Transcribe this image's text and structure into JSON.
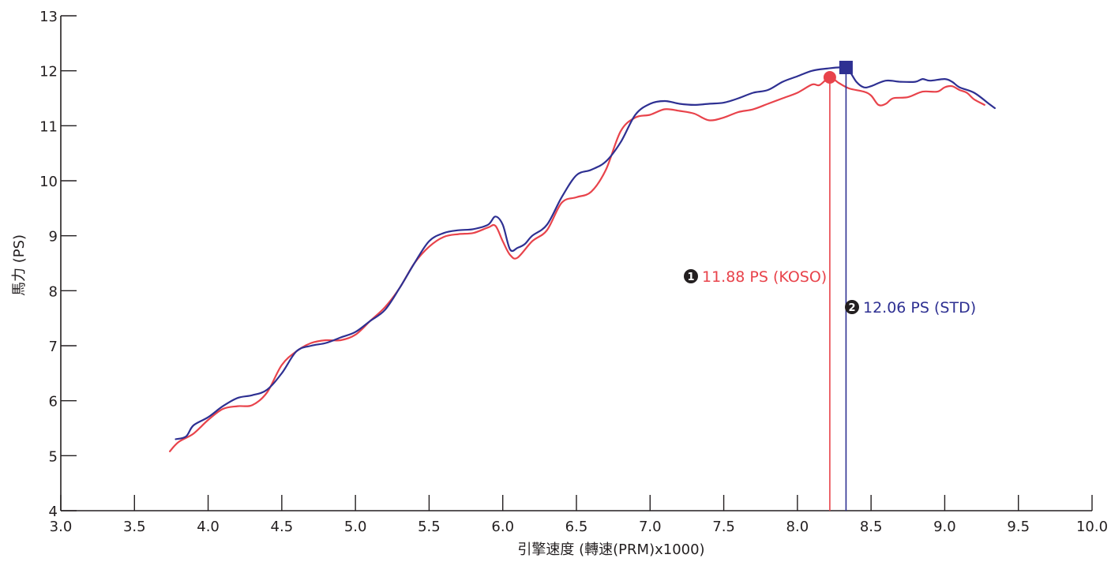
{
  "chart_data": {
    "type": "line",
    "title": "",
    "xlabel": "引擎速度 (轉速(PRM)x1000)",
    "ylabel": "馬力 (PS)",
    "xlim": [
      3.0,
      10.0
    ],
    "ylim": [
      4,
      13
    ],
    "x_ticks": [
      "3.0",
      "3.5",
      "4.0",
      "4.5",
      "5.0",
      "5.5",
      "6.0",
      "6.5",
      "7.0",
      "7.5",
      "8.0",
      "8.5",
      "9.0",
      "9.5",
      "10.0"
    ],
    "y_ticks": [
      "4",
      "5",
      "6",
      "7",
      "8",
      "9",
      "10",
      "11",
      "12",
      "13"
    ],
    "grid": false,
    "legend": "none",
    "series": [
      {
        "key": "koso",
        "color": "#e8434b",
        "points": [
          [
            3.74,
            5.08
          ],
          [
            3.8,
            5.25
          ],
          [
            3.9,
            5.4
          ],
          [
            4.0,
            5.65
          ],
          [
            4.1,
            5.85
          ],
          [
            4.2,
            5.9
          ],
          [
            4.3,
            5.92
          ],
          [
            4.4,
            6.15
          ],
          [
            4.5,
            6.65
          ],
          [
            4.6,
            6.9
          ],
          [
            4.7,
            7.05
          ],
          [
            4.8,
            7.1
          ],
          [
            4.9,
            7.1
          ],
          [
            5.0,
            7.2
          ],
          [
            5.1,
            7.45
          ],
          [
            5.2,
            7.7
          ],
          [
            5.3,
            8.05
          ],
          [
            5.4,
            8.5
          ],
          [
            5.5,
            8.8
          ],
          [
            5.6,
            8.98
          ],
          [
            5.7,
            9.03
          ],
          [
            5.8,
            9.05
          ],
          [
            5.9,
            9.15
          ],
          [
            5.95,
            9.18
          ],
          [
            6.0,
            8.9
          ],
          [
            6.05,
            8.65
          ],
          [
            6.1,
            8.6
          ],
          [
            6.2,
            8.9
          ],
          [
            6.3,
            9.1
          ],
          [
            6.4,
            9.6
          ],
          [
            6.5,
            9.7
          ],
          [
            6.6,
            9.8
          ],
          [
            6.7,
            10.2
          ],
          [
            6.8,
            10.9
          ],
          [
            6.9,
            11.15
          ],
          [
            7.0,
            11.2
          ],
          [
            7.1,
            11.3
          ],
          [
            7.2,
            11.27
          ],
          [
            7.3,
            11.22
          ],
          [
            7.4,
            11.1
          ],
          [
            7.5,
            11.15
          ],
          [
            7.6,
            11.25
          ],
          [
            7.7,
            11.3
          ],
          [
            7.8,
            11.4
          ],
          [
            7.9,
            11.5
          ],
          [
            8.0,
            11.6
          ],
          [
            8.1,
            11.75
          ],
          [
            8.15,
            11.74
          ],
          [
            8.22,
            11.88
          ],
          [
            8.28,
            11.78
          ],
          [
            8.35,
            11.68
          ],
          [
            8.45,
            11.62
          ],
          [
            8.5,
            11.55
          ],
          [
            8.55,
            11.38
          ],
          [
            8.6,
            11.4
          ],
          [
            8.65,
            11.5
          ],
          [
            8.75,
            11.52
          ],
          [
            8.85,
            11.62
          ],
          [
            8.95,
            11.62
          ],
          [
            9.0,
            11.7
          ],
          [
            9.05,
            11.72
          ],
          [
            9.1,
            11.65
          ],
          [
            9.15,
            11.6
          ],
          [
            9.2,
            11.48
          ],
          [
            9.27,
            11.38
          ]
        ]
      },
      {
        "key": "std",
        "color": "#2e3092",
        "points": [
          [
            3.78,
            5.3
          ],
          [
            3.85,
            5.35
          ],
          [
            3.9,
            5.55
          ],
          [
            4.0,
            5.7
          ],
          [
            4.1,
            5.9
          ],
          [
            4.2,
            6.05
          ],
          [
            4.3,
            6.1
          ],
          [
            4.4,
            6.2
          ],
          [
            4.5,
            6.5
          ],
          [
            4.6,
            6.9
          ],
          [
            4.7,
            7.0
          ],
          [
            4.8,
            7.05
          ],
          [
            4.9,
            7.15
          ],
          [
            5.0,
            7.25
          ],
          [
            5.1,
            7.45
          ],
          [
            5.2,
            7.65
          ],
          [
            5.3,
            8.05
          ],
          [
            5.4,
            8.5
          ],
          [
            5.5,
            8.9
          ],
          [
            5.6,
            9.05
          ],
          [
            5.7,
            9.1
          ],
          [
            5.8,
            9.12
          ],
          [
            5.9,
            9.2
          ],
          [
            5.95,
            9.35
          ],
          [
            6.0,
            9.2
          ],
          [
            6.05,
            8.75
          ],
          [
            6.1,
            8.78
          ],
          [
            6.15,
            8.85
          ],
          [
            6.2,
            9.0
          ],
          [
            6.3,
            9.2
          ],
          [
            6.4,
            9.7
          ],
          [
            6.5,
            10.1
          ],
          [
            6.6,
            10.2
          ],
          [
            6.7,
            10.35
          ],
          [
            6.8,
            10.7
          ],
          [
            6.9,
            11.2
          ],
          [
            7.0,
            11.4
          ],
          [
            7.1,
            11.45
          ],
          [
            7.2,
            11.4
          ],
          [
            7.3,
            11.38
          ],
          [
            7.4,
            11.4
          ],
          [
            7.5,
            11.42
          ],
          [
            7.6,
            11.5
          ],
          [
            7.7,
            11.6
          ],
          [
            7.8,
            11.65
          ],
          [
            7.9,
            11.8
          ],
          [
            8.0,
            11.9
          ],
          [
            8.1,
            12.0
          ],
          [
            8.2,
            12.04
          ],
          [
            8.3,
            12.06
          ],
          [
            8.35,
            12.0
          ],
          [
            8.4,
            11.8
          ],
          [
            8.45,
            11.7
          ],
          [
            8.5,
            11.72
          ],
          [
            8.6,
            11.82
          ],
          [
            8.7,
            11.8
          ],
          [
            8.8,
            11.8
          ],
          [
            8.85,
            11.85
          ],
          [
            8.9,
            11.82
          ],
          [
            9.0,
            11.85
          ],
          [
            9.05,
            11.8
          ],
          [
            9.1,
            11.7
          ],
          [
            9.2,
            11.6
          ],
          [
            9.3,
            11.4
          ],
          [
            9.34,
            11.32
          ]
        ]
      }
    ],
    "annotations": [
      {
        "key": "koso",
        "badge": "1",
        "label": "11.88 PS (KOSO)",
        "x": 8.22,
        "y": 11.88,
        "marker": "circle",
        "color": "#e8434b"
      },
      {
        "key": "std",
        "badge": "2",
        "label": "12.06 PS (STD)",
        "x": 8.33,
        "y": 12.06,
        "marker": "square",
        "color": "#2e3092"
      }
    ]
  }
}
